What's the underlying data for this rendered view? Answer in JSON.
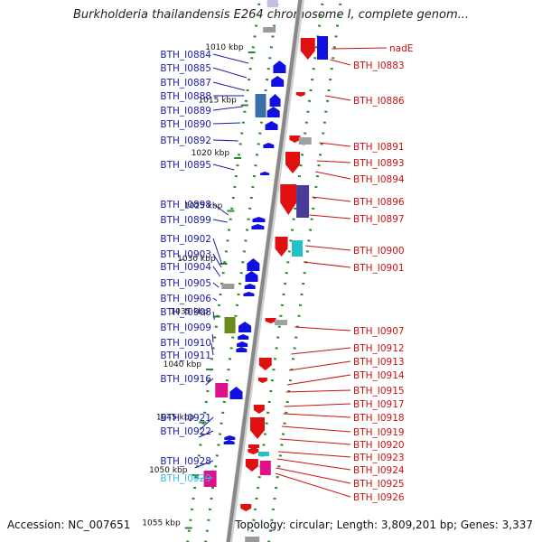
{
  "header": {
    "title": "Burkholderia thailandensis E264 chromosome I, complete genom..."
  },
  "footer": {
    "accession": "Accession: NC_007651",
    "topology": "Topology: circular; Length: 3,809,201 bp; Genes: 3,337"
  },
  "colors": {
    "left_label": "#1a1aa8",
    "right_label": "#cc1111",
    "highlight_label": "#33bbdd",
    "strand_track": "#2a8a2a",
    "backbone": "#888888",
    "forward_gene": "#1010e0",
    "reverse_gene": "#e01010"
  },
  "diagram": {
    "kbp_ticks": [
      "1010 kbp",
      "1015 kbp",
      "1020 kbp",
      "1025 kbp",
      "1030 kbp",
      "1035 kbp",
      "1040 kbp",
      "1045 kbp",
      "1050 kbp",
      "1055 kbp"
    ],
    "left_labels": [
      "BTH_I0884",
      "BTH_I0885",
      "BTH_I0887",
      "BTH_I0888",
      "BTH_I0889",
      "BTH_I0890",
      "BTH_I0892",
      "BTH_I0895",
      "BTH_I0898",
      "BTH_I0899",
      "BTH_I0902",
      "BTH_I0903",
      "BTH_I0904",
      "BTH_I0905",
      "BTH_I0906",
      "BTH_I0908",
      "BTH_I0909",
      "BTH_I0910",
      "BTH_I0911",
      "BTH_I0916",
      "BTH_I0921",
      "BTH_I0922",
      "BTH_I0928",
      "BTH_I0929"
    ],
    "right_labels": [
      "nadE",
      "BTH_I0883",
      "BTH_I0886",
      "BTH_I0891",
      "BTH_I0893",
      "BTH_I0894",
      "BTH_I0896",
      "BTH_I0897",
      "BTH_I0900",
      "BTH_I0901",
      "BTH_I0907",
      "BTH_I0912",
      "BTH_I0913",
      "BTH_I0914",
      "BTH_I0915",
      "BTH_I0917",
      "BTH_I0918",
      "BTH_I0919",
      "BTH_I0920",
      "BTH_I0923",
      "BTH_I0924",
      "BTH_I0925",
      "BTH_I0926"
    ]
  }
}
